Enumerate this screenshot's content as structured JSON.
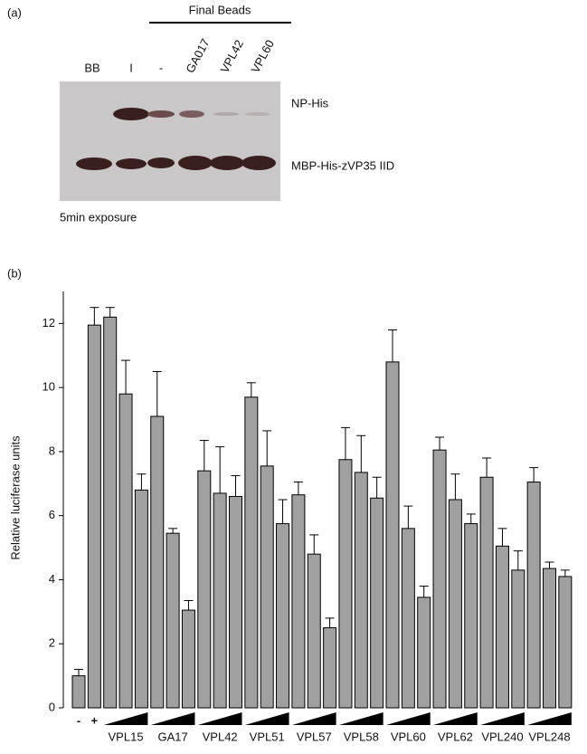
{
  "panel_a": {
    "panel_label": "(a)",
    "header": "Final Beads",
    "lanes": [
      "BB",
      "I",
      "-",
      "GA017",
      "VPL42",
      "VPL60"
    ],
    "band_labels": [
      "NP-His",
      "MBP-His-zVP35 IID"
    ],
    "caption": "5min exposure"
  },
  "chart_data": {
    "type": "bar",
    "panel_label": "(b)",
    "y_label": "Relative luciferase units",
    "categories": [
      "-",
      "+",
      null,
      null,
      null,
      null,
      null,
      null,
      null,
      null,
      null,
      null,
      null,
      null,
      null,
      null,
      null,
      null,
      null,
      null,
      null,
      null,
      null,
      null,
      null,
      null,
      null,
      null,
      null,
      null,
      null,
      null
    ],
    "groups": [
      "VPL15",
      "GA17",
      "VPL42",
      "VPL51",
      "VPL57",
      "VPL58",
      "VPL60",
      "VPL62",
      "VPL240",
      "VPL248"
    ],
    "values": [
      1.0,
      11.95,
      12.2,
      9.8,
      6.8,
      9.1,
      5.45,
      3.05,
      7.4,
      6.7,
      6.6,
      9.7,
      7.55,
      5.75,
      6.65,
      4.8,
      2.5,
      7.75,
      7.35,
      6.55,
      10.8,
      5.6,
      3.45,
      8.05,
      6.5,
      5.75,
      7.2,
      5.05,
      4.3,
      7.05,
      4.35,
      4.1
    ],
    "errors": [
      0.2,
      0.55,
      0.3,
      1.05,
      0.5,
      1.4,
      0.15,
      0.3,
      0.95,
      1.45,
      0.65,
      0.45,
      1.1,
      0.75,
      0.4,
      0.6,
      0.3,
      1.0,
      1.15,
      0.65,
      1.0,
      0.7,
      0.35,
      0.4,
      0.8,
      0.3,
      0.6,
      0.55,
      0.6,
      0.45,
      0.2,
      0.2
    ],
    "color": "#a0a0a0",
    "ylim": [
      0,
      13
    ],
    "yticks": [
      0,
      2,
      4,
      6,
      8,
      10,
      12
    ],
    "grid": false
  }
}
